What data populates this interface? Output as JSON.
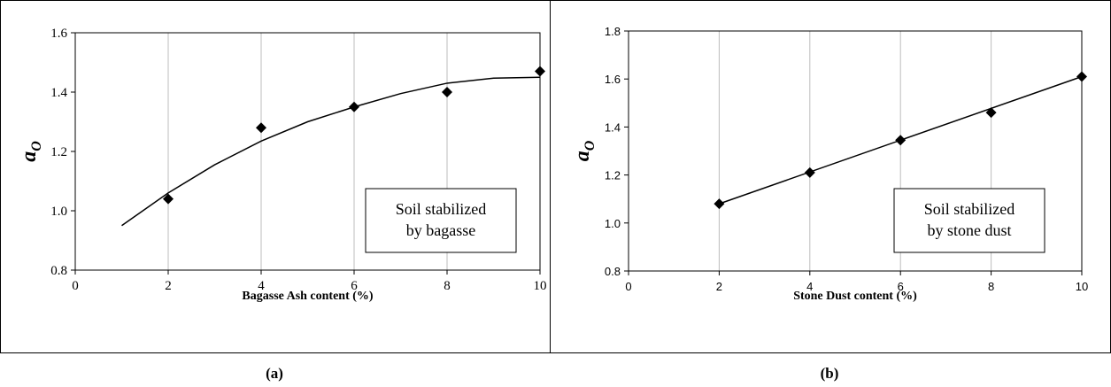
{
  "chart_data": [
    {
      "type": "scatter",
      "xlabel": "Bagasse Ash content (%)",
      "ylabel_main": "a",
      "ylabel_sub": "O",
      "xlim": [
        0,
        10
      ],
      "ylim": [
        0.8,
        1.6
      ],
      "x_ticks": [
        "0",
        "2",
        "4",
        "6",
        "8",
        "10"
      ],
      "y_ticks": [
        "0.8",
        "1.0",
        "1.2",
        "1.4",
        "1.6"
      ],
      "grid": "vertical",
      "series": [
        {
          "x": [
            2,
            4,
            6,
            8,
            10
          ],
          "y": [
            1.04,
            1.28,
            1.35,
            1.4,
            1.47
          ]
        }
      ],
      "trendline": {
        "type": "polynomial",
        "x_range": [
          1,
          10
        ],
        "points": [
          [
            1,
            0.95
          ],
          [
            2,
            1.06
          ],
          [
            3,
            1.155
          ],
          [
            4,
            1.235
          ],
          [
            5,
            1.3
          ],
          [
            6,
            1.35
          ],
          [
            7,
            1.395
          ],
          [
            8,
            1.43
          ],
          [
            9,
            1.447
          ],
          [
            10,
            1.45
          ]
        ]
      },
      "legend_lines": [
        "Soil stabilized",
        "by bagasse"
      ],
      "legend_position": "bottom-right",
      "caption": "(a)"
    },
    {
      "type": "scatter",
      "xlabel": "Stone Dust content (%)",
      "ylabel_main": "a",
      "ylabel_sub": "O",
      "xlim": [
        0,
        10
      ],
      "ylim": [
        0.8,
        1.8
      ],
      "x_ticks": [
        "0",
        "2",
        "4",
        "6",
        "8",
        "10"
      ],
      "y_ticks": [
        "0.8",
        "1.0",
        "1.2",
        "1.4",
        "1.6",
        "1.8"
      ],
      "grid": "vertical",
      "series": [
        {
          "x": [
            2,
            4,
            6,
            8,
            10
          ],
          "y": [
            1.08,
            1.21,
            1.345,
            1.46,
            1.61
          ]
        }
      ],
      "trendline": {
        "type": "linear",
        "x_range": [
          2,
          10
        ],
        "points": [
          [
            2,
            1.08
          ],
          [
            10,
            1.61
          ]
        ]
      },
      "legend_lines": [
        "Soil stabilized",
        "by stone dust"
      ],
      "legend_position": "bottom-right",
      "caption": "(b)"
    }
  ]
}
